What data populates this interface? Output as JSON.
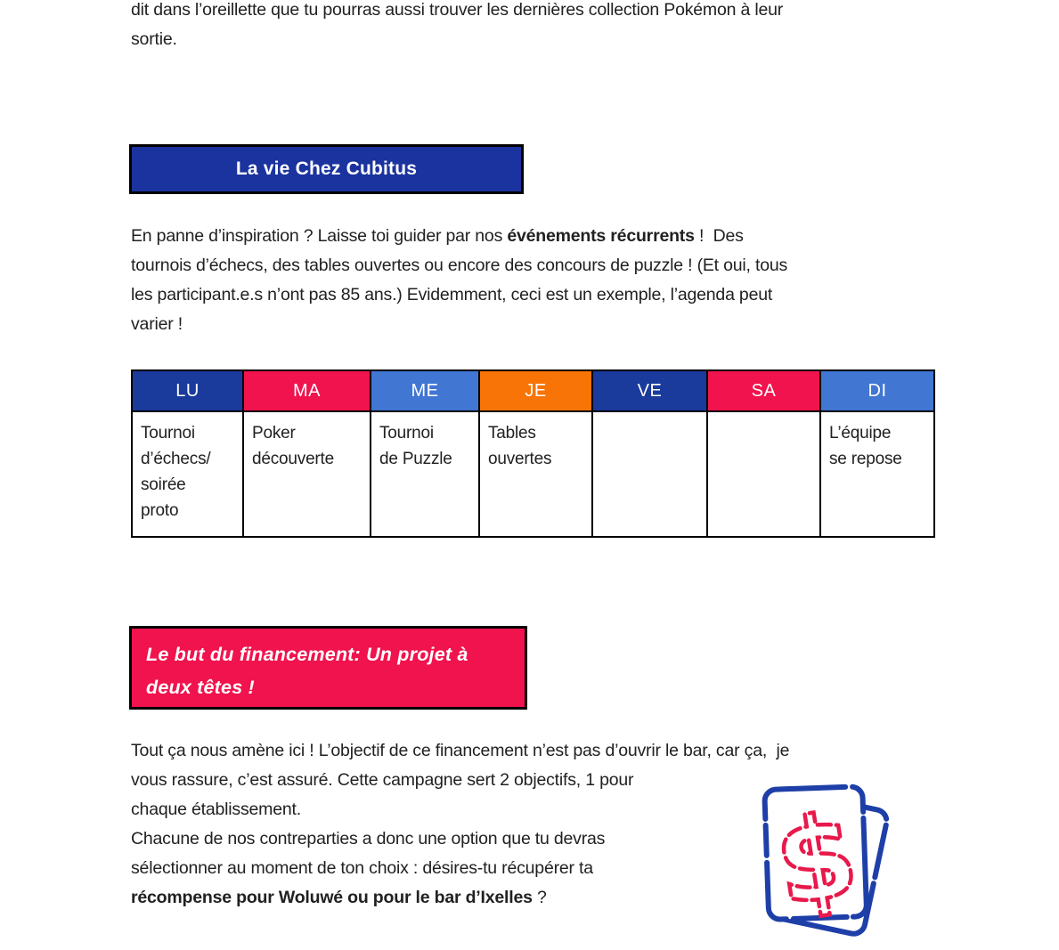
{
  "palette": {
    "banner_blue": "#1B339E",
    "banner_red": "#F0134D",
    "day_dark_blue": "#1A3A9C",
    "day_red": "#F0134D",
    "day_medium_blue": "#4176D3",
    "day_orange": "#F87406",
    "text": "#212121",
    "icon_blue": "#1E3FA8",
    "icon_red": "#E8194B"
  },
  "intro": {
    "text": "dit dans l’oreillette que tu pourras aussi trouver les dernières collection Pokémon à leur\nsortie."
  },
  "section_events": {
    "banner_label": "La vie Chez Cubitus",
    "paragraph": {
      "segments": [
        {
          "text": "En panne d’inspiration ? Laisse toi guider par nos ",
          "bold": false
        },
        {
          "text": "événements récurrents",
          "bold": true
        },
        {
          "text": " !  Des\ntournois d’échecs, des tables ouvertes ou encore des concours de puzzle ! (Et oui, tous\nles participant.e.s n’ont pas 85 ans.) Evidemment, ceci est un exemple, l’agenda peut\nvarier !",
          "bold": false
        }
      ]
    }
  },
  "schedule_table": {
    "headers": [
      {
        "label": "LU",
        "color": "#1A3A9C"
      },
      {
        "label": "MA",
        "color": "#F0134D"
      },
      {
        "label": "ME",
        "color": "#4176D3"
      },
      {
        "label": "JE",
        "color": "#F87406"
      },
      {
        "label": "VE",
        "color": "#1A3A9C"
      },
      {
        "label": "SA",
        "color": "#F0134D"
      },
      {
        "label": "DI",
        "color": "#4176D3"
      }
    ],
    "cells": [
      "Tournoi\nd’échecs/\nsoirée\nproto",
      "Poker\ndécouverte",
      "Tournoi\nde Puzzle",
      "Tables\nouvertes",
      "",
      "",
      "L’équipe\nse repose"
    ]
  },
  "section_goal": {
    "banner_label": "Le but du financement: Un projet à deux têtes !",
    "paragraph": {
      "segments": [
        {
          "text": "Tout ça nous amène ici ! L’objectif de ce financement n’est pas d’ouvrir le bar, car ça,  je\nvous rassure, c’est assuré. Cette campagne sert 2 objectifs, 1 pour\nchaque établissement.\nChacune de nos contreparties a donc une option que tu devras\nsélectionner au moment de ton choix : désires-tu récupérer ta\n",
          "bold": false
        },
        {
          "text": "récompense pour Woluwé ou pour le bar d’Ixelles",
          "bold": true
        },
        {
          "text": " ?",
          "bold": false
        }
      ]
    }
  },
  "icons": {
    "dollar_cards": "dollar-sign-cards-icon"
  }
}
